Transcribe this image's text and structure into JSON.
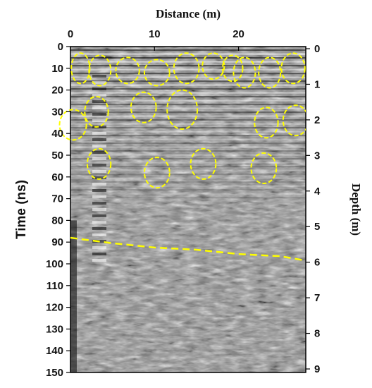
{
  "chart_data": {
    "type": "heatmap",
    "title": "",
    "xlabel": "Distance (m)",
    "ylabel_left": "Time (ns)",
    "ylabel_right": "Depth (m)",
    "x_ticks": [
      0,
      10,
      20
    ],
    "xlim": [
      0,
      28
    ],
    "y_left_ticks": [
      0,
      10,
      20,
      30,
      40,
      50,
      60,
      70,
      80,
      90,
      100,
      110,
      120,
      130,
      140,
      150
    ],
    "y_left_lim": [
      0,
      150
    ],
    "y_right_ticks": [
      0,
      1,
      2,
      3,
      4,
      5,
      6,
      7,
      8,
      9
    ],
    "y_right_lim": [
      0,
      9
    ],
    "colormap": "grayscale",
    "annotation_color": "#ffff00",
    "anomalies_circled": [
      {
        "x": 1.2,
        "t": 10,
        "rx": 1.1,
        "rt": 7
      },
      {
        "x": 3.5,
        "t": 11,
        "rx": 1.3,
        "rt": 7
      },
      {
        "x": 6.8,
        "t": 11,
        "rx": 1.4,
        "rt": 6
      },
      {
        "x": 10.3,
        "t": 12,
        "rx": 1.5,
        "rt": 6
      },
      {
        "x": 13.8,
        "t": 10,
        "rx": 1.5,
        "rt": 7
      },
      {
        "x": 17.0,
        "t": 9,
        "rx": 1.3,
        "rt": 6
      },
      {
        "x": 19.3,
        "t": 10,
        "rx": 1.2,
        "rt": 6
      },
      {
        "x": 20.7,
        "t": 12,
        "rx": 1.3,
        "rt": 7
      },
      {
        "x": 23.7,
        "t": 12,
        "rx": 1.3,
        "rt": 7
      },
      {
        "x": 26.5,
        "t": 10,
        "rx": 1.4,
        "rt": 7
      },
      {
        "x": 0.3,
        "t": 36,
        "rx": 1.6,
        "rt": 7
      },
      {
        "x": 3.1,
        "t": 30,
        "rx": 1.4,
        "rt": 7
      },
      {
        "x": 8.7,
        "t": 28,
        "rx": 1.5,
        "rt": 7
      },
      {
        "x": 13.3,
        "t": 29,
        "rx": 1.8,
        "rt": 9
      },
      {
        "x": 23.3,
        "t": 35,
        "rx": 1.4,
        "rt": 7
      },
      {
        "x": 26.8,
        "t": 34,
        "rx": 1.5,
        "rt": 7
      },
      {
        "x": 3.4,
        "t": 54,
        "rx": 1.4,
        "rt": 7
      },
      {
        "x": 10.3,
        "t": 58,
        "rx": 1.5,
        "rt": 7
      },
      {
        "x": 15.8,
        "t": 54,
        "rx": 1.5,
        "rt": 7
      },
      {
        "x": 23.0,
        "t": 56,
        "rx": 1.5,
        "rt": 7
      }
    ],
    "interface_line": {
      "style": "dashed",
      "points": [
        [
          0,
          88
        ],
        [
          5,
          90.5
        ],
        [
          10,
          92.5
        ],
        [
          15,
          93.5
        ],
        [
          20,
          95.5
        ],
        [
          25,
          96.5
        ],
        [
          28,
          98.5
        ]
      ]
    }
  }
}
